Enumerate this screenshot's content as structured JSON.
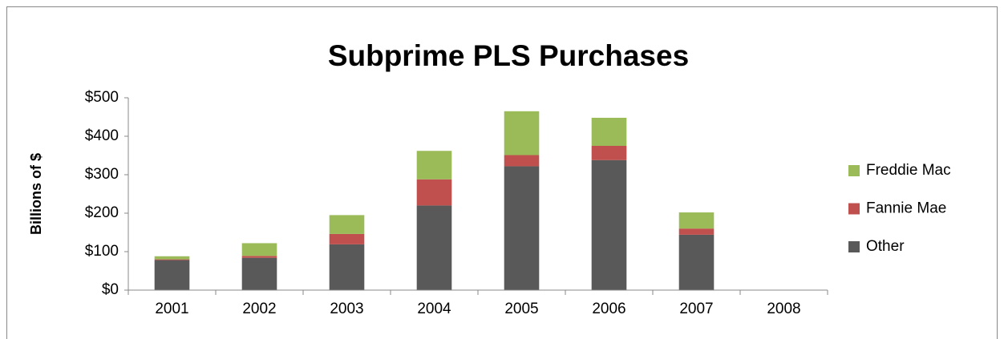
{
  "chart_data": {
    "type": "stacked_bar",
    "title": "Subprime PLS Purchases",
    "y_label": "Billions of $",
    "categories": [
      "2001",
      "2002",
      "2003",
      "2004",
      "2005",
      "2006",
      "2007",
      "2008"
    ],
    "series": [
      {
        "name": "Other",
        "color": "#595959",
        "values": [
          78,
          84,
          119,
          220,
          322,
          338,
          144,
          0
        ]
      },
      {
        "name": "Fannie Mae",
        "color": "#c0504d",
        "values": [
          2,
          5,
          27,
          68,
          29,
          37,
          16,
          1
        ]
      },
      {
        "name": "Freddie Mac",
        "color": "#9bbb59",
        "values": [
          8,
          33,
          49,
          74,
          114,
          73,
          42,
          0
        ]
      }
    ],
    "ylim": [
      0,
      500
    ],
    "yticks": [
      {
        "value": 0,
        "label": "$0"
      },
      {
        "value": 100,
        "label": "$100"
      },
      {
        "value": 200,
        "label": "$200"
      },
      {
        "value": 300,
        "label": "$300"
      },
      {
        "value": 400,
        "label": "$400"
      },
      {
        "value": 500,
        "label": "$500"
      }
    ],
    "legend": "right"
  }
}
